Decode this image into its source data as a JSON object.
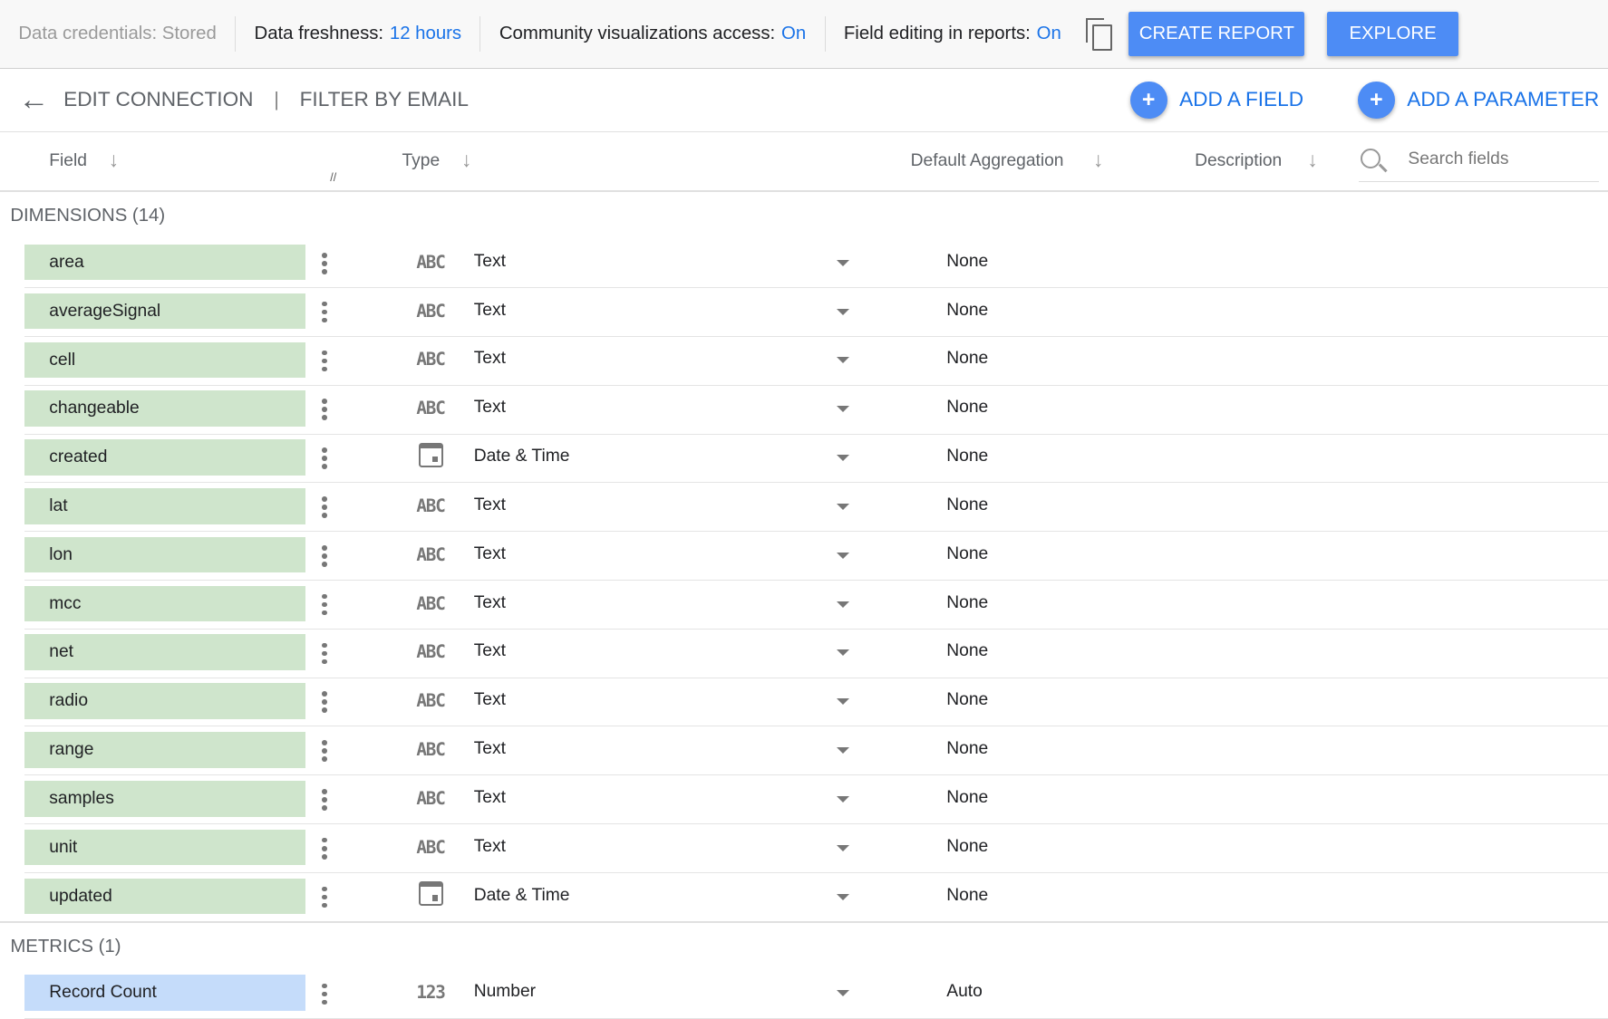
{
  "topbar": {
    "credentials": "Data credentials: Stored",
    "freshness_label": "Data freshness:",
    "freshness_value": "12 hours",
    "community_label": "Community visualizations access:",
    "community_value": "On",
    "field_editing_label": "Field editing in reports:",
    "field_editing_value": "On",
    "create_report": "CREATE REPORT",
    "explore": "EXPLORE"
  },
  "header": {
    "edit_connection": "EDIT CONNECTION",
    "separator": "|",
    "filter": "FILTER BY EMAIL",
    "add_field": "ADD A FIELD",
    "add_parameter": "ADD A PARAMETER"
  },
  "columns": {
    "field": "Field",
    "type": "Type",
    "aggregation": "Default Aggregation",
    "description": "Description",
    "search_placeholder": "Search fields"
  },
  "dimensions": {
    "title": "DIMENSIONS (14)",
    "rows": [
      {
        "name": "area",
        "type": "Text",
        "icon": "abc",
        "agg": "None"
      },
      {
        "name": "averageSignal",
        "type": "Text",
        "icon": "abc",
        "agg": "None"
      },
      {
        "name": "cell",
        "type": "Text",
        "icon": "abc",
        "agg": "None"
      },
      {
        "name": "changeable",
        "type": "Text",
        "icon": "abc",
        "agg": "None"
      },
      {
        "name": "created",
        "type": "Date & Time",
        "icon": "calendar",
        "agg": "None"
      },
      {
        "name": "lat",
        "type": "Text",
        "icon": "abc",
        "agg": "None"
      },
      {
        "name": "lon",
        "type": "Text",
        "icon": "abc",
        "agg": "None"
      },
      {
        "name": "mcc",
        "type": "Text",
        "icon": "abc",
        "agg": "None"
      },
      {
        "name": "net",
        "type": "Text",
        "icon": "abc",
        "agg": "None"
      },
      {
        "name": "radio",
        "type": "Text",
        "icon": "abc",
        "agg": "None"
      },
      {
        "name": "range",
        "type": "Text",
        "icon": "abc",
        "agg": "None"
      },
      {
        "name": "samples",
        "type": "Text",
        "icon": "abc",
        "agg": "None"
      },
      {
        "name": "unit",
        "type": "Text",
        "icon": "abc",
        "agg": "None"
      },
      {
        "name": "updated",
        "type": "Date & Time",
        "icon": "calendar",
        "agg": "None"
      }
    ]
  },
  "metrics": {
    "title": "METRICS (1)",
    "rows": [
      {
        "name": "Record Count",
        "type": "Number",
        "icon": "123",
        "agg": "Auto"
      }
    ]
  },
  "icon_text": {
    "abc": "ABC",
    "num": "123"
  },
  "colors": {
    "dimension_chip": "#cfe5cc",
    "metric_chip": "#c5dcfa",
    "accent": "#4d8cf5",
    "link": "#1a73e8"
  }
}
